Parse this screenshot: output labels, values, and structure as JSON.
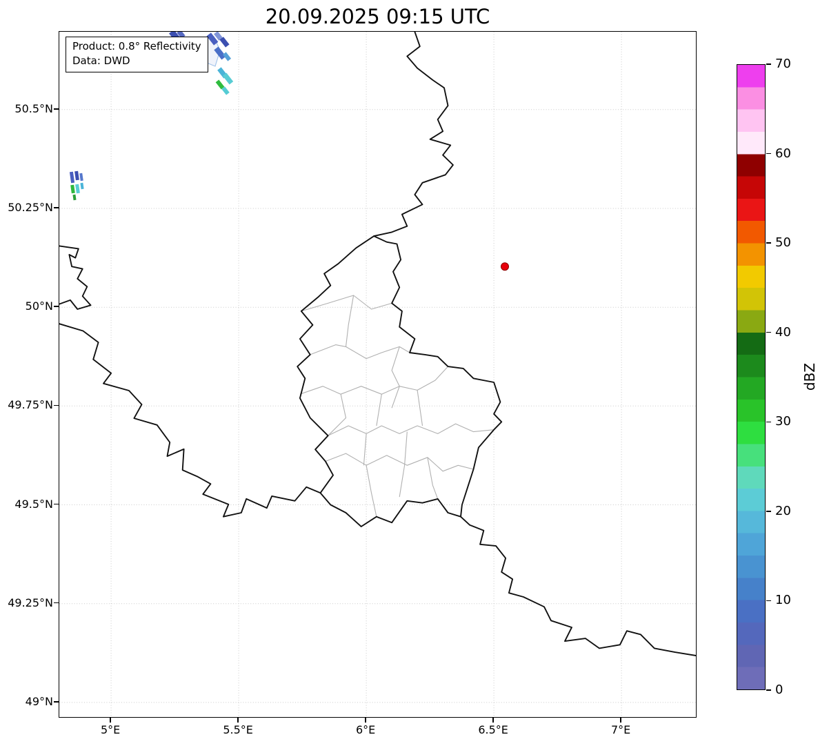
{
  "title": "20.09.2025 09:15 UTC",
  "info_box": {
    "product": "Product: 0.8° Reflectivity",
    "data_source": "Data: DWD"
  },
  "axes": {
    "x_tick_labels": [
      "5°E",
      "5.5°E",
      "6°E",
      "6.5°E",
      "7°E"
    ],
    "x_tick_values": [
      5,
      5.5,
      6,
      6.5,
      7
    ],
    "y_tick_labels": [
      "49°N",
      "49.25°N",
      "49.5°N",
      "49.75°N",
      "50°N",
      "50.25°N",
      "50.5°N"
    ],
    "y_tick_values": [
      49,
      49.25,
      49.5,
      49.75,
      50,
      50.25,
      50.5
    ]
  },
  "colorbar": {
    "label": "dBZ",
    "unit_min": 0,
    "unit_max": 70,
    "tick_labels": [
      "0",
      "10",
      "20",
      "30",
      "40",
      "50",
      "60",
      "70"
    ],
    "tick_values": [
      0,
      10,
      20,
      30,
      40,
      50,
      60,
      70
    ],
    "band_colors": [
      "#6e6db8",
      "#6066b4",
      "#5468bc",
      "#4a70c4",
      "#4681ca",
      "#4993d1",
      "#4fa5d8",
      "#56b8da",
      "#5cccd6",
      "#5fd9bb",
      "#47e07c",
      "#2ede40",
      "#29c329",
      "#23a823",
      "#1c8a1c",
      "#146b14",
      "#8aa912",
      "#d2c406",
      "#f2ca00",
      "#f39300",
      "#f25900",
      "#ea1515",
      "#c60606",
      "#8f0000",
      "#ffe9fa",
      "#ffc4f2",
      "#fb8fe3",
      "#ee3fee"
    ]
  },
  "marker": {
    "lon": 6.543,
    "lat": 50.103,
    "color": "#e8000b",
    "edge_color": "#8b0000"
  },
  "map_colors": {
    "country_border": "#111111",
    "district_border": "#b0b0b0",
    "grid": "#c9c9c9"
  }
}
